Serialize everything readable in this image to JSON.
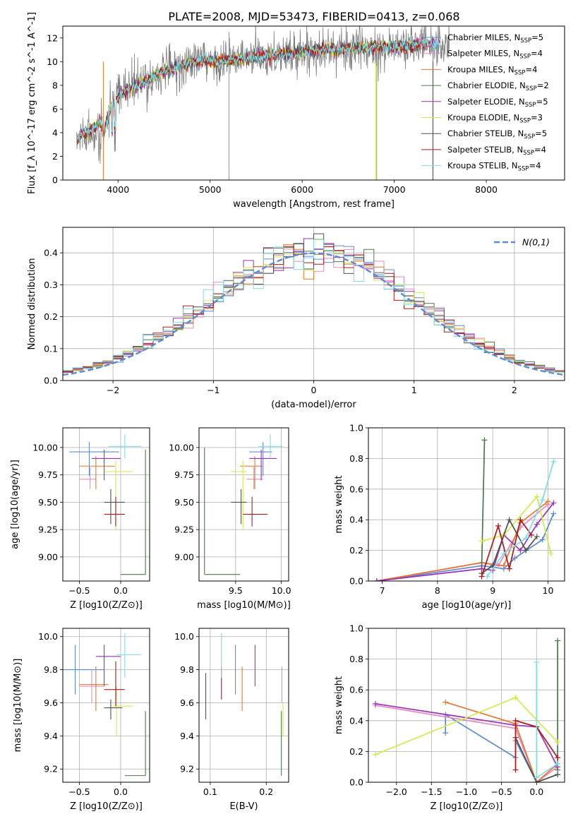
{
  "figure": {
    "title": "PLATE=2008, MJD=53473, FIBERID=0413, z=0.068"
  },
  "models": [
    {
      "name": "Chabrier MILES",
      "nssp": "5",
      "color": "#5b8bd6"
    },
    {
      "name": "Salpeter MILES",
      "nssp": "4",
      "color": "#e78ac3"
    },
    {
      "name": "Kroupa MILES",
      "nssp": "4",
      "color": "#e8772a"
    },
    {
      "name": "Chabrier ELODIE",
      "nssp": "2",
      "color": "#4a7a4a"
    },
    {
      "name": "Salpeter ELODIE",
      "nssp": "5",
      "color": "#9b30b8"
    },
    {
      "name": "Kroupa ELODIE",
      "nssp": "3",
      "color": "#d4ea4a"
    },
    {
      "name": "Chabrier STELIB",
      "nssp": "5",
      "color": "#505050"
    },
    {
      "name": "Salpeter STELIB",
      "nssp": "4",
      "color": "#b01818"
    },
    {
      "name": "Kroupa STELIB",
      "nssp": "4",
      "color": "#7fdde6"
    }
  ],
  "chart_data": [
    {
      "id": "spectrum",
      "type": "line",
      "xlabel": "wavelength [Angstrom, rest frame]",
      "ylabel": "Flux [f_λ 10^-17 erg cm^-2 s^-1 A^-1]",
      "xlim": [
        3400,
        8850
      ],
      "ylim": [
        0,
        13
      ],
      "xticks": [
        4000,
        5000,
        6000,
        7000,
        8000
      ],
      "yticks": [
        0,
        2,
        4,
        6,
        8,
        10,
        12
      ],
      "grid": false,
      "legend": "right",
      "anchors": {
        "x": [
          3550,
          3600,
          3650,
          3700,
          3750,
          3800,
          3850,
          3900,
          3950,
          4000,
          4100,
          4200,
          4300,
          4400,
          4500,
          4600,
          4700,
          4800,
          4900,
          5000,
          5200,
          5400,
          5600,
          5800,
          6000,
          6200,
          6400,
          6600,
          6800,
          7000,
          7200,
          7400,
          7600,
          7800,
          8000,
          8200,
          8400,
          8600,
          8800
        ],
        "y": [
          3.2,
          3.8,
          4.0,
          4.2,
          4.4,
          5.0,
          3.8,
          5.8,
          6.5,
          7.0,
          7.7,
          8.0,
          8.3,
          8.8,
          9.2,
          9.4,
          9.7,
          9.9,
          10.1,
          10.0,
          10.1,
          10.3,
          10.5,
          10.6,
          10.8,
          11.0,
          11.0,
          11.1,
          11.3,
          11.2,
          11.4,
          11.6,
          11.3,
          11.4,
          11.2,
          11.0,
          10.9,
          10.8,
          10.7
        ]
      },
      "model_end": [
        7450,
        7420,
        7400,
        7350,
        7500,
        7380,
        7350,
        7420,
        7500
      ]
    },
    {
      "id": "residuals",
      "type": "histogram",
      "xlabel": "(data-model)/error",
      "ylabel": "Normed distribution",
      "xlim": [
        -2.5,
        2.5
      ],
      "ylim": [
        0,
        0.48
      ],
      "xticks": [
        -2,
        -1,
        0,
        1,
        2
      ],
      "yticks": [
        0.0,
        0.1,
        0.2,
        0.3,
        0.4
      ],
      "grid": true,
      "legend": "top-right",
      "reference_label": "N(0,1)",
      "bin_edges": [
        -2.5,
        -2.4,
        -2.3,
        -2.2,
        -2.1,
        -2.0,
        -1.9,
        -1.8,
        -1.7,
        -1.6,
        -1.5,
        -1.4,
        -1.3,
        -1.2,
        -1.1,
        -1.0,
        -0.9,
        -0.8,
        -0.7,
        -0.6,
        -0.5,
        -0.4,
        -0.3,
        -0.2,
        -0.1,
        0.0,
        0.1,
        0.2,
        0.3,
        0.4,
        0.5,
        0.6,
        0.7,
        0.8,
        0.9,
        1.0,
        1.1,
        1.2,
        1.3,
        1.4,
        1.5,
        1.6,
        1.7,
        1.8,
        1.9,
        2.0,
        2.1,
        2.2,
        2.3,
        2.4,
        2.5
      ]
    },
    {
      "id": "age-vs-Z",
      "type": "scatter",
      "xlabel": "Z [log10(Z/Z⊙)]",
      "ylabel": "age  [log10(age/yr)]",
      "xlim": [
        -0.7,
        0.35
      ],
      "ylim": [
        8.78,
        10.18
      ],
      "xticks": [
        -0.5,
        0.0
      ],
      "yticks": [
        9.0,
        9.25,
        9.5,
        9.75,
        10.0
      ],
      "grid": true,
      "points": [
        {
          "model": 0,
          "x": -0.38,
          "y": 9.96,
          "ex": [
            -0.62,
            -0.02
          ],
          "ey": [
            9.74,
            10.05
          ]
        },
        {
          "model": 1,
          "x": -0.37,
          "y": 9.71,
          "ex": [
            -0.5,
            -0.3
          ],
          "ey": [
            9.62,
            9.82
          ]
        },
        {
          "model": 2,
          "x": -0.3,
          "y": 9.83,
          "ex": [
            -0.5,
            -0.07
          ],
          "ey": [
            9.62,
            9.92
          ]
        },
        {
          "model": 3,
          "x": 0.3,
          "y": 8.84,
          "ex": [
            0.0,
            0.3
          ],
          "ey": [
            8.84,
            9.98
          ]
        },
        {
          "model": 4,
          "x": -0.2,
          "y": 9.9,
          "ex": [
            -0.35,
            0.0
          ],
          "ey": [
            9.7,
            9.98
          ]
        },
        {
          "model": 5,
          "x": -0.06,
          "y": 9.78,
          "ex": [
            -0.2,
            0.15
          ],
          "ey": [
            9.25,
            9.88
          ]
        },
        {
          "model": 6,
          "x": -0.12,
          "y": 9.5,
          "ex": [
            -0.2,
            0.05
          ],
          "ey": [
            9.3,
            9.62
          ]
        },
        {
          "model": 7,
          "x": -0.06,
          "y": 9.39,
          "ex": [
            -0.2,
            0.05
          ],
          "ey": [
            9.28,
            9.55
          ]
        },
        {
          "model": 8,
          "x": 0.05,
          "y": 10.01,
          "ex": [
            -0.15,
            0.25
          ],
          "ey": [
            9.9,
            10.12
          ]
        }
      ]
    },
    {
      "id": "age-vs-mass",
      "type": "scatter",
      "xlabel": "mass [log10(M/M⊙)]",
      "ylabel": "",
      "xlim": [
        9.1,
        10.08
      ],
      "ylim": [
        8.78,
        10.18
      ],
      "xticks": [
        9.5,
        10.0
      ],
      "yticks": [
        9.0,
        9.25,
        9.5,
        9.75,
        10.0
      ],
      "grid": true,
      "points": [
        {
          "model": 0,
          "x": 9.8,
          "y": 9.96,
          "ex": [
            9.65,
            9.9
          ],
          "ey": [
            9.74,
            10.05
          ]
        },
        {
          "model": 1,
          "x": 9.7,
          "y": 9.71,
          "ex": [
            9.62,
            9.8
          ],
          "ey": [
            9.62,
            9.82
          ]
        },
        {
          "model": 2,
          "x": 9.71,
          "y": 9.83,
          "ex": [
            9.55,
            9.8
          ],
          "ey": [
            9.62,
            9.92
          ]
        },
        {
          "model": 3,
          "x": 9.16,
          "y": 8.84,
          "ex": [
            9.16,
            9.55
          ],
          "ey": [
            8.84,
            10.0
          ]
        },
        {
          "model": 4,
          "x": 9.78,
          "y": 9.9,
          "ex": [
            9.65,
            9.95
          ],
          "ey": [
            9.7,
            9.98
          ]
        },
        {
          "model": 5,
          "x": 9.58,
          "y": 9.78,
          "ex": [
            9.45,
            9.62
          ],
          "ey": [
            9.25,
            9.88
          ]
        },
        {
          "model": 6,
          "x": 9.56,
          "y": 9.5,
          "ex": [
            9.45,
            9.62
          ],
          "ey": [
            9.3,
            9.62
          ]
        },
        {
          "model": 7,
          "x": 9.68,
          "y": 9.39,
          "ex": [
            9.58,
            9.85
          ],
          "ey": [
            9.28,
            9.55
          ]
        },
        {
          "model": 8,
          "x": 9.88,
          "y": 10.01,
          "ex": [
            9.75,
            10.02
          ],
          "ey": [
            9.9,
            10.12
          ]
        }
      ]
    },
    {
      "id": "weight-vs-age",
      "type": "line",
      "xlabel": "age  [log10(age/yr)]",
      "ylabel": "mass weight",
      "xlim": [
        6.75,
        10.3
      ],
      "ylim": [
        0,
        1
      ],
      "xticks": [
        7,
        8,
        9,
        10
      ],
      "yticks": [
        0.0,
        0.2,
        0.4,
        0.6,
        0.8,
        1.0
      ],
      "grid": true,
      "series": [
        {
          "model": 0,
          "x": [
            6.9,
            8.8,
            9.2,
            9.4,
            9.9,
            10.1
          ],
          "y": [
            0.0,
            0.1,
            0.08,
            0.15,
            0.27,
            0.44
          ]
        },
        {
          "model": 1,
          "x": [
            6.9,
            8.8,
            9.1,
            9.5,
            10.0
          ],
          "y": [
            0.0,
            0.12,
            0.1,
            0.35,
            0.5
          ]
        },
        {
          "model": 2,
          "x": [
            6.9,
            8.8,
            9.2,
            9.5,
            10.0
          ],
          "y": [
            0.0,
            0.12,
            0.1,
            0.38,
            0.52
          ]
        },
        {
          "model": 3,
          "x": [
            8.8,
            8.85
          ],
          "y": [
            0.08,
            0.92
          ]
        },
        {
          "model": 4,
          "x": [
            6.9,
            8.8,
            9.0,
            9.2,
            9.5,
            9.8,
            10.1
          ],
          "y": [
            0.0,
            0.08,
            0.07,
            0.3,
            0.2,
            0.37,
            0.51
          ]
        },
        {
          "model": 5,
          "x": [
            8.8,
            9.2,
            9.8,
            10.05
          ],
          "y": [
            0.26,
            0.3,
            0.55,
            0.18
          ]
        },
        {
          "model": 6,
          "x": [
            8.8,
            9.0,
            9.3,
            9.6,
            9.8
          ],
          "y": [
            0.05,
            0.1,
            0.4,
            0.2,
            0.29
          ]
        },
        {
          "model": 7,
          "x": [
            8.8,
            9.1,
            9.3,
            9.5,
            9.7
          ],
          "y": [
            0.03,
            0.36,
            0.08,
            0.4,
            0.3
          ]
        },
        {
          "model": 8,
          "x": [
            8.9,
            9.2,
            9.6,
            9.9,
            10.1
          ],
          "y": [
            0.03,
            0.18,
            0.28,
            0.53,
            0.78
          ]
        }
      ]
    },
    {
      "id": "mass-vs-Z",
      "type": "scatter",
      "xlabel": "Z [log10(Z/Z⊙)]",
      "ylabel": "mass [log10(M/M⊙)]",
      "xlim": [
        -0.7,
        0.35
      ],
      "ylim": [
        9.12,
        10.05
      ],
      "xticks": [
        -0.5,
        0.0
      ],
      "yticks": [
        9.2,
        9.4,
        9.6,
        9.8,
        10.0
      ],
      "grid": true,
      "points": [
        {
          "model": 0,
          "x": -0.55,
          "y": 9.8,
          "ex": [
            -0.7,
            -0.2
          ],
          "ey": [
            9.65,
            9.95
          ]
        },
        {
          "model": 1,
          "x": -0.35,
          "y": 9.7,
          "ex": [
            -0.5,
            -0.2
          ],
          "ey": [
            9.6,
            9.8
          ]
        },
        {
          "model": 2,
          "x": -0.3,
          "y": 9.71,
          "ex": [
            -0.5,
            -0.15
          ],
          "ey": [
            9.55,
            9.82
          ]
        },
        {
          "model": 3,
          "x": 0.3,
          "y": 9.16,
          "ex": [
            0.05,
            0.3
          ],
          "ey": [
            9.16,
            9.55
          ]
        },
        {
          "model": 4,
          "x": -0.2,
          "y": 9.88,
          "ex": [
            -0.3,
            0.0
          ],
          "ey": [
            9.7,
            9.95
          ]
        },
        {
          "model": 5,
          "x": -0.05,
          "y": 9.58,
          "ex": [
            -0.1,
            0.15
          ],
          "ey": [
            9.4,
            9.7
          ]
        },
        {
          "model": 6,
          "x": -0.12,
          "y": 9.57,
          "ex": [
            -0.2,
            0.02
          ],
          "ey": [
            9.5,
            9.62
          ]
        },
        {
          "model": 7,
          "x": -0.06,
          "y": 9.68,
          "ex": [
            -0.2,
            0.05
          ],
          "ey": [
            9.58,
            9.85
          ]
        },
        {
          "model": 8,
          "x": 0.05,
          "y": 9.89,
          "ex": [
            -0.05,
            0.25
          ],
          "ey": [
            9.75,
            10.02
          ]
        }
      ]
    },
    {
      "id": "mass-vs-ebv",
      "type": "scatter",
      "xlabel": "E(B-V)",
      "ylabel": "",
      "xlim": [
        0.08,
        0.24
      ],
      "ylim": [
        9.12,
        10.05
      ],
      "xticks": [
        0.1,
        0.2
      ],
      "yticks": [
        9.2,
        9.4,
        9.6,
        9.8,
        10.0
      ],
      "grid": true,
      "points": [
        {
          "model": 0,
          "x": 0.145,
          "ey": [
            9.65,
            9.95
          ]
        },
        {
          "model": 1,
          "x": 0.228,
          "ey": [
            9.6,
            9.82
          ]
        },
        {
          "model": 2,
          "x": 0.157,
          "ey": [
            9.55,
            9.82
          ]
        },
        {
          "model": 3,
          "x": 0.227,
          "ey": [
            9.16,
            9.55
          ]
        },
        {
          "model": 4,
          "x": 0.18,
          "ey": [
            9.7,
            9.95
          ]
        },
        {
          "model": 5,
          "x": 0.23,
          "ey": [
            9.4,
            9.6
          ]
        },
        {
          "model": 6,
          "x": 0.092,
          "ey": [
            9.5,
            9.78
          ]
        },
        {
          "model": 7,
          "x": 0.12,
          "ey": [
            9.62,
            9.82
          ]
        },
        {
          "model": 8,
          "x": 0.12,
          "ey": [
            9.75,
            10.02
          ]
        }
      ]
    },
    {
      "id": "weight-vs-Z",
      "type": "line",
      "xlabel": "Z [log10(Z/Z⊙)]",
      "ylabel": "mass weight",
      "xlim": [
        -2.4,
        0.4
      ],
      "ylim": [
        0,
        1
      ],
      "xticks": [
        -2.0,
        -1.5,
        -1.0,
        -0.5,
        0.0
      ],
      "yticks": [
        0.0,
        0.2,
        0.4,
        0.6,
        0.8,
        1.0
      ],
      "grid": true,
      "series": [
        {
          "model": 0,
          "x": [
            -1.3,
            -1.3,
            -0.3,
            -0.3,
            0.0,
            0.3
          ],
          "y": [
            0.32,
            0.44,
            0.16,
            0.27,
            0.0,
            0.05
          ]
        },
        {
          "model": 1,
          "x": [
            -2.3,
            -0.3,
            0.0,
            0.3
          ],
          "y": [
            0.5,
            0.35,
            0.0,
            0.1
          ]
        },
        {
          "model": 2,
          "x": [
            -1.3,
            -0.3,
            0.0,
            0.3
          ],
          "y": [
            0.52,
            0.38,
            0.0,
            0.12
          ]
        },
        {
          "model": 3,
          "x": [
            0.3,
            0.3
          ],
          "y": [
            0.08,
            0.92
          ]
        },
        {
          "model": 4,
          "x": [
            -2.3,
            -0.3,
            0.0,
            0.3
          ],
          "y": [
            0.51,
            0.37,
            0.36,
            0.1
          ]
        },
        {
          "model": 5,
          "x": [
            -2.3,
            -0.3,
            0.3
          ],
          "y": [
            0.18,
            0.55,
            0.26
          ]
        },
        {
          "model": 6,
          "x": [
            -0.3,
            0.0,
            0.3
          ],
          "y": [
            0.29,
            0.0,
            0.05
          ]
        },
        {
          "model": 7,
          "x": [
            -0.3,
            -0.3,
            0.0,
            0.3
          ],
          "y": [
            0.08,
            0.4,
            0.36,
            0.16
          ]
        },
        {
          "model": 8,
          "x": [
            0.0,
            0.0,
            0.3
          ],
          "y": [
            0.78,
            0.03,
            0.12
          ]
        }
      ]
    }
  ]
}
